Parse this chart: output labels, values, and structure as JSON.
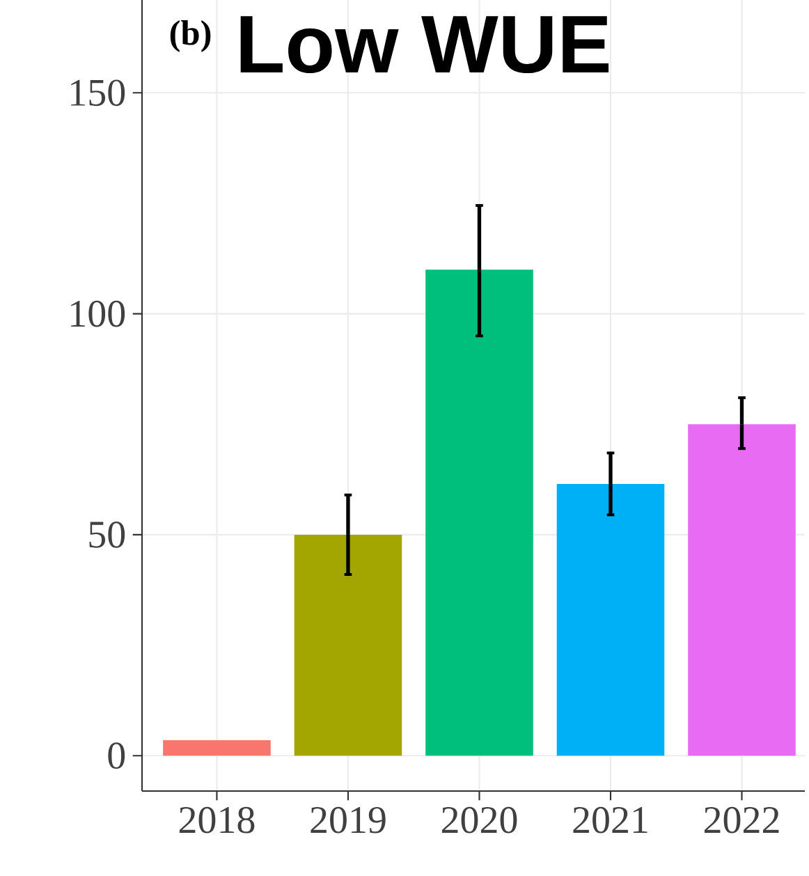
{
  "chart_data": {
    "type": "bar",
    "title": "Low WUE",
    "annotations": [
      "(b)"
    ],
    "categories": [
      "2018",
      "2019",
      "2020",
      "2021",
      "2022"
    ],
    "values": [
      3.5,
      50,
      110,
      61.5,
      75
    ],
    "errors": [
      null,
      [
        41,
        59
      ],
      [
        95,
        124.5
      ],
      [
        54.5,
        68.5
      ],
      [
        69.5,
        81
      ]
    ],
    "colors": [
      "#f8766d",
      "#a3a500",
      "#00bf7d",
      "#00b0f6",
      "#e76bf3"
    ],
    "ylim": [
      -8,
      171
    ],
    "yticks": [
      0,
      50,
      100,
      150
    ],
    "grid": true
  }
}
